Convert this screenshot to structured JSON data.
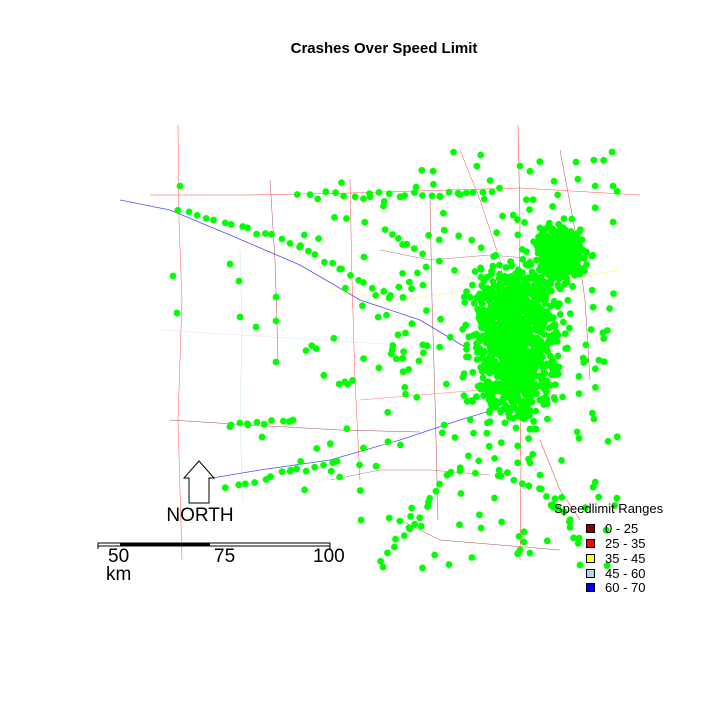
{
  "title": "Crashes Over Speed Limit",
  "north_label": "NORTH",
  "scale_bar": {
    "ticks": [
      "50",
      "75",
      "100"
    ],
    "unit": "km"
  },
  "legend": {
    "title": "Speedlimit Ranges",
    "items": [
      {
        "label": "0 - 25",
        "color": "#8b0000"
      },
      {
        "label": "25 - 35",
        "color": "#ff0000"
      },
      {
        "label": "35 - 45",
        "color": "#ffff00"
      },
      {
        "label": "45 - 60",
        "color": "#add8e6"
      },
      {
        "label": "60 - 70",
        "color": "#0000ff"
      }
    ]
  },
  "crash_marker_color": "#00ff00",
  "road_colors": [
    "#8b0000",
    "#ff0000",
    "#ffff00",
    "#add8e6",
    "#0000ff"
  ]
}
